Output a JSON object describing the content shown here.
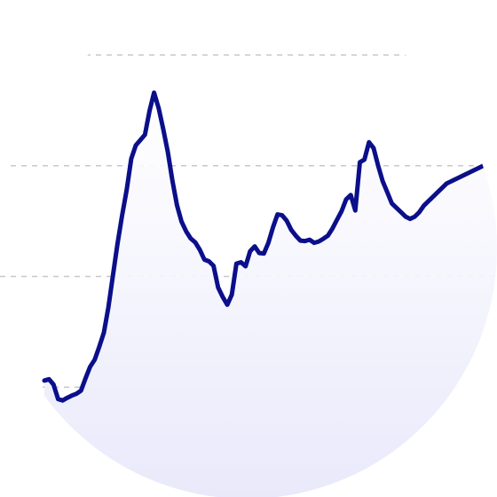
{
  "chart_data": {
    "type": "area",
    "title": "",
    "xlabel": "",
    "ylabel": "",
    "grid": true,
    "legend": "none",
    "line_color": "#0b0f8a",
    "fill_color": "#e9e9fb",
    "grid_color": "#c8c8c8",
    "ylim": [
      0,
      100
    ],
    "gridlines": [
      25,
      50,
      75,
      100
    ],
    "x": [
      0,
      1,
      2,
      3,
      4,
      5,
      6,
      7,
      8,
      9,
      10,
      11,
      12,
      13,
      14,
      15,
      16,
      17,
      18,
      19,
      20,
      21,
      22,
      23,
      24,
      25,
      26,
      27,
      28,
      29,
      30,
      31,
      32,
      33,
      34,
      35,
      36,
      37,
      38,
      39,
      40,
      41,
      42,
      43,
      44,
      45,
      46,
      47,
      48,
      49,
      50,
      51,
      52,
      53,
      54,
      55,
      56,
      57,
      58,
      59,
      60,
      61,
      62,
      63,
      64,
      65,
      66,
      67,
      68,
      69,
      70,
      71,
      72,
      73,
      74,
      75,
      76,
      77,
      78,
      79,
      80,
      81,
      82,
      83,
      84,
      85,
      86,
      87,
      88,
      89,
      90,
      91,
      92,
      93,
      94,
      95,
      96,
      97,
      98,
      99
    ],
    "values": [
      26.5,
      26.8,
      25.6,
      22.3,
      22.0,
      22.6,
      23.1,
      23.5,
      24.2,
      27.0,
      29.6,
      31.2,
      34.1,
      37.3,
      43.0,
      50.3,
      57.4,
      63.8,
      69.5,
      76.6,
      79.6,
      80.8,
      82.0,
      87.4,
      91.5,
      88.0,
      83.3,
      78.1,
      71.7,
      66.1,
      62.4,
      60.2,
      58.6,
      57.7,
      56.0,
      53.8,
      53.4,
      52.4,
      47.5,
      45.4,
      43.6,
      45.9,
      52.9,
      53.2,
      52.3,
      55.7,
      56.8,
      55.3,
      55.2,
      57.6,
      61.1,
      64.0,
      63.8,
      62.6,
      60.5,
      59.2,
      58.1,
      58.0,
      58.3,
      57.6,
      57.9,
      58.5,
      59.2,
      60.8,
      62.8,
      64.7,
      67.4,
      68.4,
      64.9,
      75.8,
      76.4,
      80.3,
      79.0,
      75.0,
      71.5,
      69.0,
      66.5,
      65.5,
      64.5,
      63.5,
      63.0,
      63.5,
      64.5,
      66.0,
      67.0,
      68.0,
      69.0,
      70.0,
      71.0,
      71.5,
      72.0,
      72.5,
      73.0,
      73.5,
      74.0,
      74.5,
      75.0,
      75.5,
      76.0,
      76.5
    ]
  }
}
